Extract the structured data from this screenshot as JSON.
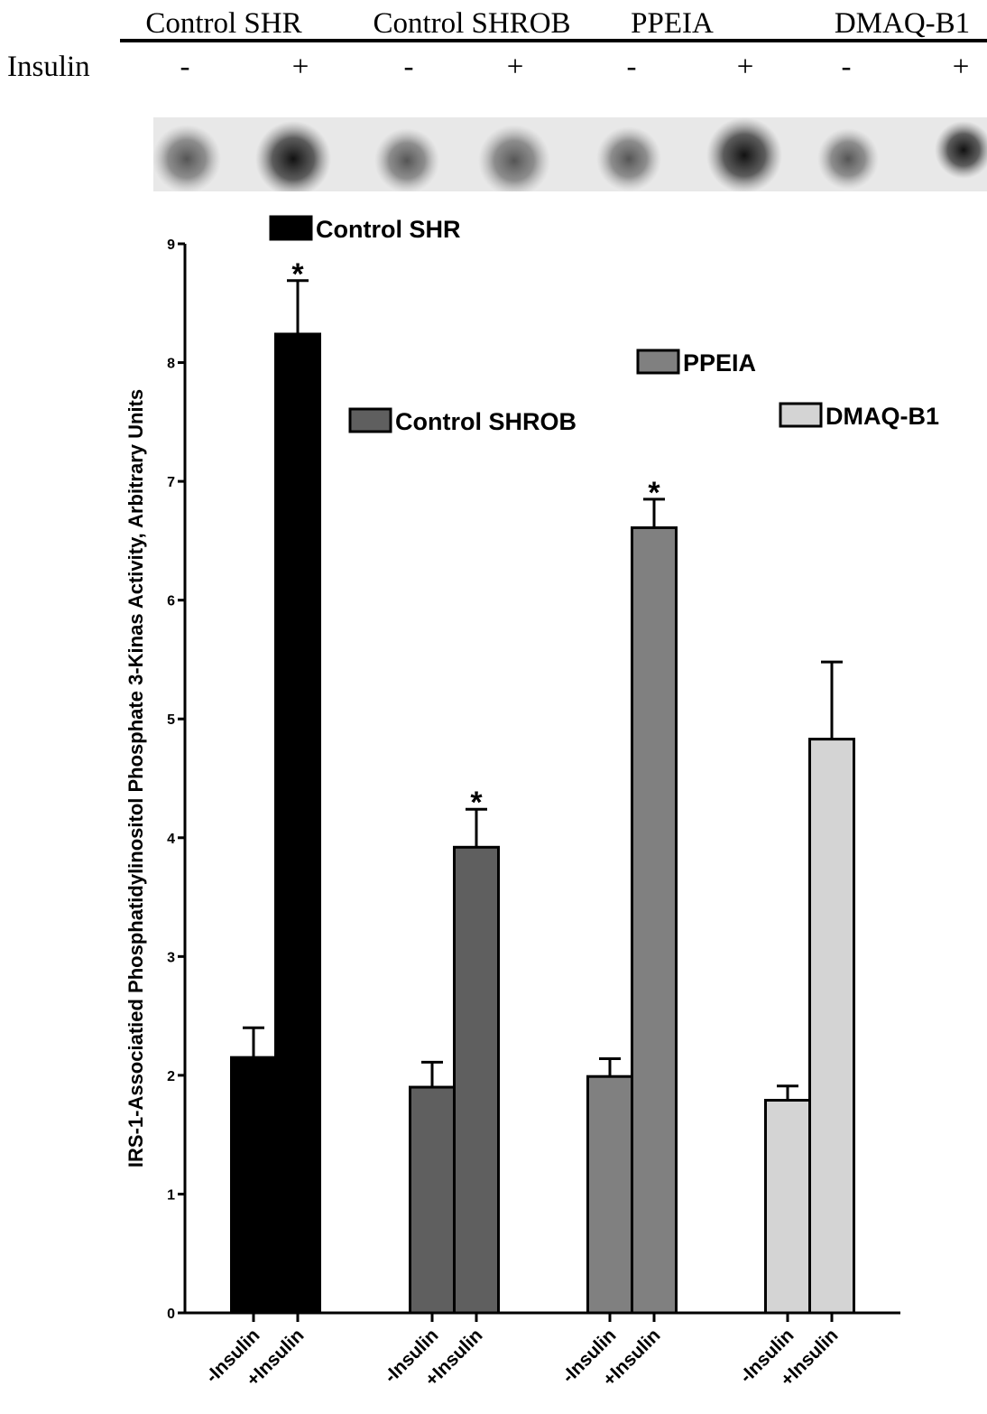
{
  "blot": {
    "row_label": "Insulin",
    "lanes": [
      "-",
      "+",
      "-",
      "+",
      "-",
      "+",
      "-",
      "+"
    ]
  },
  "chart_data": {
    "type": "bar",
    "y_label": "IRS-1-Associatied Phosphatidylinositol Phosphate 3-Kinas Activity, Arbitrary Units",
    "categories": [
      "-Insulin",
      "+Insulin",
      "-Insulin",
      "+Insulin",
      "-Insulin",
      "+Insulin",
      "-Insulin",
      "+Insulin"
    ],
    "series": [
      {
        "name": "Control SHR",
        "color": "#000000",
        "values": [
          2.15,
          8.24,
          null,
          null,
          null,
          null,
          null,
          null
        ],
        "errors": [
          0.25,
          0.45,
          null,
          null,
          null,
          null,
          null,
          null
        ],
        "markers": [
          null,
          "*",
          null,
          null,
          null,
          null,
          null,
          null
        ]
      },
      {
        "name": "Control SHROB",
        "color": "#5f5f5f",
        "values": [
          null,
          null,
          1.9,
          3.92,
          null,
          null,
          null,
          null
        ],
        "errors": [
          null,
          null,
          0.21,
          0.32,
          null,
          null,
          null,
          null
        ],
        "markers": [
          null,
          null,
          null,
          "*",
          null,
          null,
          null,
          null
        ]
      },
      {
        "name": "PPEIA",
        "color": "#808080",
        "values": [
          null,
          null,
          null,
          null,
          1.99,
          6.61,
          null,
          null
        ],
        "errors": [
          null,
          null,
          null,
          null,
          0.15,
          0.24,
          null,
          null
        ],
        "markers": [
          null,
          null,
          null,
          null,
          null,
          "*",
          null,
          null
        ]
      },
      {
        "name": "DMAQ-B1",
        "color": "#d4d4d4",
        "values": [
          null,
          null,
          null,
          null,
          null,
          null,
          1.79,
          4.83
        ],
        "errors": [
          null,
          null,
          null,
          null,
          null,
          null,
          0.12,
          0.65
        ],
        "markers": [
          null,
          null,
          null,
          null,
          null,
          null,
          null,
          null
        ]
      }
    ],
    "ylim": [
      0,
      9
    ],
    "yticks": [
      0,
      1,
      2,
      3,
      4,
      5,
      6,
      7,
      8,
      9
    ]
  }
}
